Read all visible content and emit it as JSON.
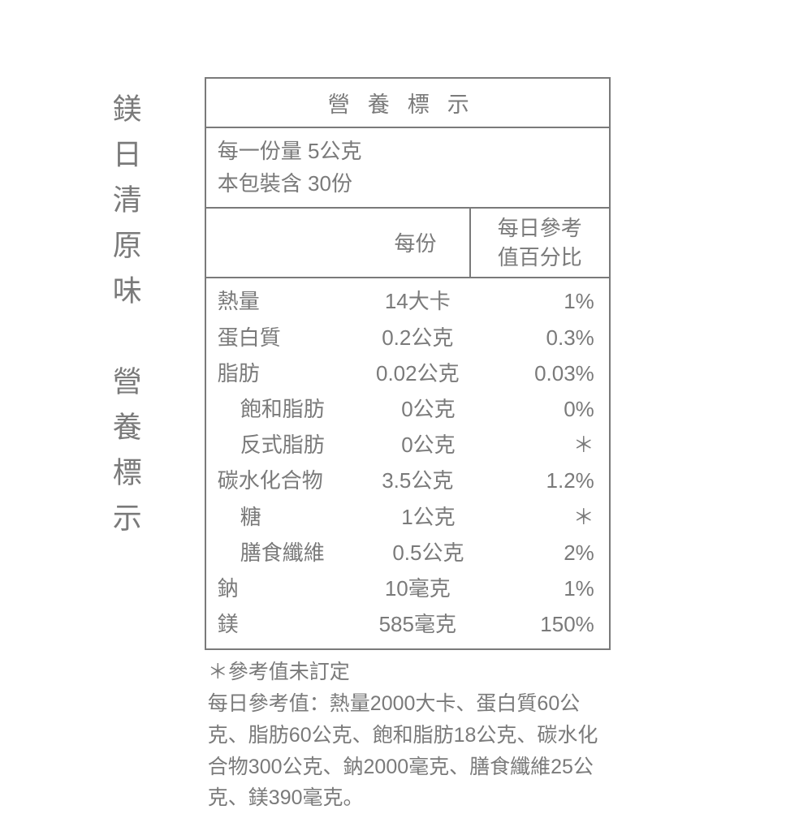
{
  "vertical_title": "鎂日清原味　營養標示",
  "table": {
    "title": "營養標示",
    "serving_size": "每一份量  5公克",
    "servings_per_container": "本包裝含 30份",
    "header_per_serving": "每份",
    "header_daily_line1": "每日參考",
    "header_daily_line2": "值百分比",
    "rows": [
      {
        "name": "熱量",
        "value": "14大卡",
        "percent": "1%",
        "indented": false
      },
      {
        "name": "蛋白質",
        "value": "0.2公克",
        "percent": "0.3%",
        "indented": false
      },
      {
        "name": "脂肪",
        "value": "0.02公克",
        "percent": "0.03%",
        "indented": false
      },
      {
        "name": "飽和脂肪",
        "value": "0公克",
        "percent": "0%",
        "indented": true
      },
      {
        "name": "反式脂肪",
        "value": "0公克",
        "percent": "＊",
        "indented": true
      },
      {
        "name": "碳水化合物",
        "value": "3.5公克",
        "percent": "1.2%",
        "indented": false
      },
      {
        "name": "糖",
        "value": "1公克",
        "percent": "＊",
        "indented": true
      },
      {
        "name": "膳食纖維",
        "value": "0.5公克",
        "percent": "2%",
        "indented": true
      },
      {
        "name": "鈉",
        "value": "10毫克",
        "percent": "1%",
        "indented": false
      },
      {
        "name": "鎂",
        "value": "585毫克",
        "percent": "150%",
        "indented": false
      }
    ]
  },
  "footnote": {
    "line1": "＊參考值未訂定",
    "line2": "每日參考值：熱量2000大卡、蛋白質60公克、脂肪60公克、飽和脂肪18公克、碳水化合物300公克、鈉2000毫克、膳食纖維25公克、鎂390毫克。"
  },
  "colors": {
    "text": "#7a7a7a",
    "border": "#7a7a7a",
    "background": "#ffffff"
  },
  "typography": {
    "vertical_title_fontsize": 36,
    "table_title_fontsize": 27,
    "body_fontsize": 26,
    "footnote_fontsize": 25
  }
}
